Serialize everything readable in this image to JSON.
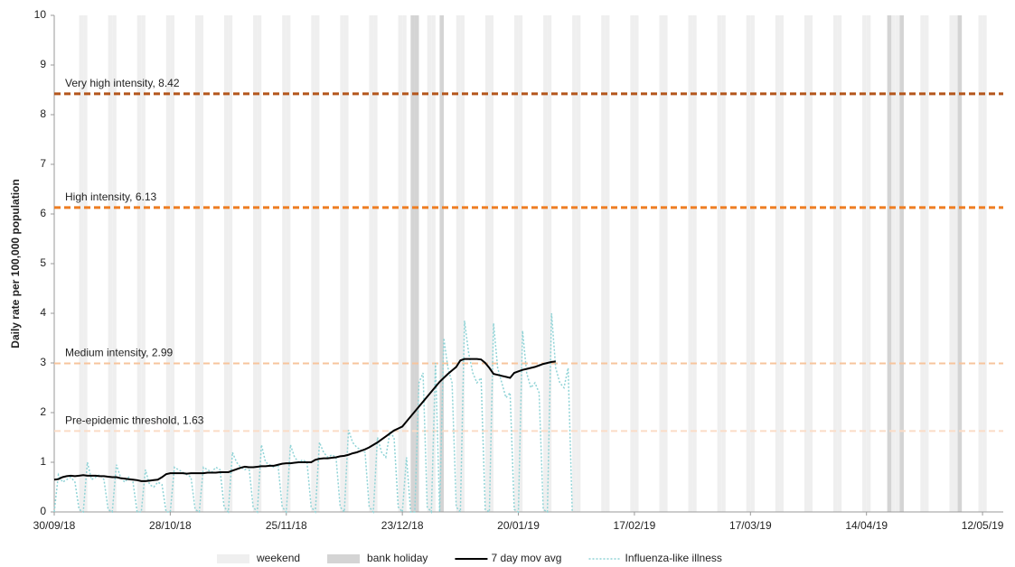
{
  "chart_data": {
    "type": "line",
    "y_label": "Daily rate per 100,000 population",
    "xlim": [
      0,
      229
    ],
    "ylim": [
      0,
      10
    ],
    "yticks": [
      0,
      1,
      2,
      3,
      4,
      5,
      6,
      7,
      8,
      9,
      10
    ],
    "xticks": [
      {
        "value": 0,
        "label": "30/09/18"
      },
      {
        "value": 28,
        "label": "28/10/18"
      },
      {
        "value": 56,
        "label": "25/11/18"
      },
      {
        "value": 84,
        "label": "23/12/18"
      },
      {
        "value": 112,
        "label": "20/01/19"
      },
      {
        "value": 140,
        "label": "17/02/19"
      },
      {
        "value": 168,
        "label": "17/03/19"
      },
      {
        "value": 196,
        "label": "14/04/19"
      },
      {
        "value": 224,
        "label": "12/05/19"
      }
    ],
    "bands": [
      {
        "name": "weekend",
        "color": "#efefef",
        "x": [
          6,
          7,
          13,
          14,
          20,
          21,
          27,
          28,
          34,
          35,
          41,
          42,
          48,
          49,
          55,
          56,
          62,
          63,
          69,
          70,
          76,
          77,
          83,
          84,
          90,
          91,
          97,
          98,
          104,
          105,
          111,
          112,
          118,
          119,
          125,
          126,
          132,
          133,
          139,
          140,
          146,
          147,
          153,
          154,
          160,
          161,
          167,
          168,
          174,
          175,
          181,
          182,
          188,
          189,
          195,
          196,
          202,
          203,
          209,
          210,
          216,
          217,
          223,
          224
        ]
      },
      {
        "name": "bank holiday",
        "color": "#d4d4d4",
        "x": [
          86,
          87,
          93,
          201,
          204,
          218
        ]
      }
    ],
    "series": [
      {
        "name": "7 day mov avg",
        "color": "#000000",
        "x": [
          0,
          1,
          2,
          3,
          4,
          5,
          6,
          7,
          8,
          9,
          10,
          11,
          12,
          13,
          14,
          15,
          16,
          17,
          18,
          19,
          20,
          21,
          22,
          23,
          24,
          25,
          26,
          27,
          28,
          29,
          30,
          31,
          32,
          33,
          34,
          35,
          36,
          37,
          38,
          39,
          40,
          41,
          42,
          43,
          44,
          45,
          46,
          47,
          48,
          49,
          50,
          51,
          52,
          53,
          54,
          55,
          56,
          57,
          58,
          59,
          60,
          61,
          62,
          63,
          64,
          65,
          66,
          67,
          68,
          69,
          70,
          71,
          72,
          73,
          74,
          75,
          76,
          77,
          78,
          79,
          80,
          81,
          82,
          83,
          84,
          85,
          86,
          87,
          88,
          89,
          90,
          91,
          92,
          93,
          94,
          95,
          96,
          97,
          98,
          99,
          100,
          101,
          102,
          103,
          104,
          105,
          106,
          107,
          108,
          109,
          110,
          111,
          112,
          113,
          114,
          115,
          116,
          117,
          118,
          119,
          120,
          121
        ],
        "values": [
          0.65,
          0.66,
          0.7,
          0.72,
          0.73,
          0.72,
          0.73,
          0.74,
          0.73,
          0.73,
          0.73,
          0.72,
          0.72,
          0.71,
          0.7,
          0.7,
          0.68,
          0.67,
          0.66,
          0.65,
          0.64,
          0.62,
          0.62,
          0.63,
          0.64,
          0.65,
          0.7,
          0.76,
          0.78,
          0.78,
          0.78,
          0.78,
          0.77,
          0.78,
          0.78,
          0.78,
          0.78,
          0.79,
          0.79,
          0.79,
          0.8,
          0.8,
          0.8,
          0.83,
          0.86,
          0.89,
          0.91,
          0.9,
          0.9,
          0.91,
          0.92,
          0.92,
          0.93,
          0.93,
          0.95,
          0.97,
          0.98,
          0.98,
          0.99,
          1.0,
          1.0,
          1.0,
          1.0,
          1.05,
          1.07,
          1.08,
          1.08,
          1.09,
          1.1,
          1.12,
          1.13,
          1.15,
          1.18,
          1.2,
          1.23,
          1.26,
          1.3,
          1.35,
          1.4,
          1.46,
          1.52,
          1.58,
          1.64,
          1.68,
          1.72,
          1.82,
          1.92,
          2.02,
          2.12,
          2.22,
          2.32,
          2.42,
          2.52,
          2.62,
          2.7,
          2.78,
          2.85,
          2.92,
          3.05,
          3.08,
          3.08,
          3.08,
          3.08,
          3.07,
          3.0,
          2.9,
          2.78,
          2.76,
          2.74,
          2.72,
          2.7,
          2.8,
          2.83,
          2.86,
          2.88,
          2.9,
          2.92,
          2.95,
          2.98,
          3.0,
          3.02,
          3.03
        ]
      },
      {
        "name": "Influenza-like illness",
        "color": "#8fd3d6",
        "x": [
          0,
          1,
          2,
          3,
          4,
          5,
          6,
          7,
          8,
          9,
          10,
          11,
          12,
          13,
          14,
          15,
          16,
          17,
          18,
          19,
          20,
          21,
          22,
          23,
          24,
          25,
          26,
          27,
          28,
          29,
          30,
          31,
          32,
          33,
          34,
          35,
          36,
          37,
          38,
          39,
          40,
          41,
          42,
          43,
          44,
          45,
          46,
          47,
          48,
          49,
          50,
          51,
          52,
          53,
          54,
          55,
          56,
          57,
          58,
          59,
          60,
          61,
          62,
          63,
          64,
          65,
          66,
          67,
          68,
          69,
          70,
          71,
          72,
          73,
          74,
          75,
          76,
          77,
          78,
          79,
          80,
          81,
          82,
          83,
          84,
          85,
          86,
          87,
          88,
          89,
          90,
          91,
          92,
          93,
          94,
          95,
          96,
          97,
          98,
          99,
          100,
          101,
          102,
          103,
          104,
          105,
          106,
          107,
          108,
          109,
          110,
          111,
          112,
          113,
          114,
          115,
          116,
          117,
          118,
          119,
          120,
          121,
          122,
          123,
          124,
          125
        ],
        "values": [
          0,
          0.75,
          0.6,
          0.65,
          0.7,
          0.6,
          0.05,
          0,
          1.0,
          0.65,
          0.7,
          0.75,
          0.65,
          0.05,
          0,
          0.95,
          0.7,
          0.6,
          0.7,
          0.6,
          0,
          0,
          0.85,
          0.55,
          0.5,
          0.6,
          0.55,
          0,
          0,
          0.9,
          0.85,
          0.8,
          0.75,
          0.7,
          0.05,
          0,
          0.9,
          0.85,
          0.8,
          0.9,
          0.85,
          0.1,
          0,
          1.2,
          1.0,
          0.9,
          0.85,
          0.9,
          0.1,
          0,
          1.35,
          1.0,
          0.95,
          0.9,
          0.95,
          0.1,
          0,
          1.35,
          1.1,
          1.0,
          1.05,
          1.0,
          0.1,
          0,
          1.4,
          1.2,
          1.1,
          1.15,
          1.1,
          0.1,
          0,
          1.65,
          1.4,
          1.3,
          1.25,
          1.2,
          0.1,
          0,
          1.5,
          1.2,
          1.1,
          1.6,
          1.5,
          0.1,
          0,
          1.1,
          0,
          0,
          2.6,
          2.8,
          0.1,
          0,
          3.0,
          0,
          3.5,
          2.9,
          2.6,
          0.1,
          0,
          3.85,
          3.2,
          2.8,
          2.6,
          2.7,
          0.05,
          0,
          3.8,
          2.9,
          2.6,
          2.3,
          2.4,
          0.05,
          0,
          3.65,
          2.8,
          2.5,
          2.6,
          2.4,
          0.05,
          0,
          4.0,
          2.9,
          2.6,
          2.5,
          2.9,
          0
        ]
      }
    ],
    "thresholds": [
      {
        "label": "Very high intensity, 8.42",
        "value": 8.42,
        "color": "#b4561c"
      },
      {
        "label": "High intensity, 6.13",
        "value": 6.13,
        "color": "#ee7d22"
      },
      {
        "label": "Medium intensity, 2.99",
        "value": 2.99,
        "color": "#f7c49d"
      },
      {
        "label": "Pre-epidemic threshold, 1.63",
        "value": 1.63,
        "color": "#fbdcc6"
      }
    ]
  }
}
